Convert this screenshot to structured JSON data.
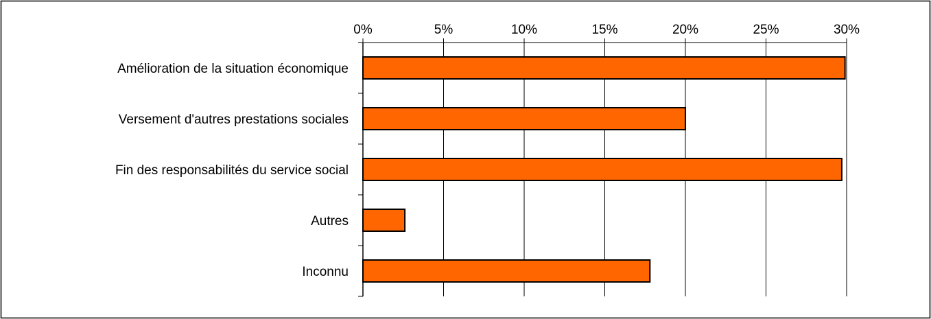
{
  "chart_data": {
    "type": "bar",
    "orientation": "horizontal",
    "categories": [
      "Amélioration de la situation économique",
      "Versement d'autres prestations sociales",
      "Fin des responsabilités du service social",
      "Autres",
      "Inconnu"
    ],
    "values": [
      29.9,
      20.0,
      29.7,
      2.6,
      17.8
    ],
    "value_unit": "%",
    "xlim": [
      0,
      30
    ],
    "x_ticks": [
      "0%",
      "5%",
      "10%",
      "15%",
      "20%",
      "25%",
      "30%"
    ],
    "x_tick_values": [
      0,
      5,
      10,
      15,
      20,
      25,
      30
    ],
    "x_axis_position": "top",
    "grid": "vertical",
    "legend": "none",
    "title": "",
    "xlabel": "",
    "ylabel": ""
  },
  "colors": {
    "bar_fill": "#FF6600",
    "bar_stroke": "#000000",
    "grid": "#000000",
    "frame": "#000000",
    "background": "#FFFFFF"
  }
}
